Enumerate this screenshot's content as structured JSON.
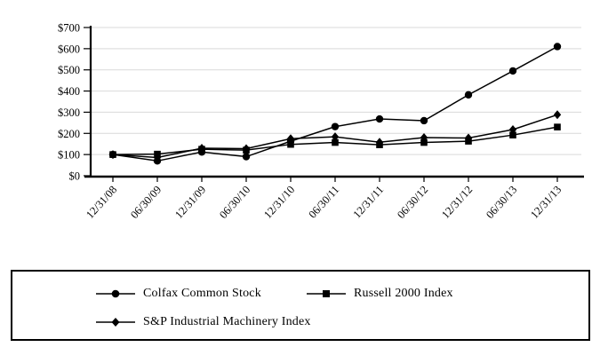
{
  "page": {
    "background": "#ffffff"
  },
  "chart_data": {
    "type": "line",
    "title": "",
    "xlabel": "",
    "ylabel": "",
    "categories": [
      "12/31/08",
      "06/30/09",
      "12/31/09",
      "06/30/10",
      "12/31/10",
      "06/30/11",
      "12/31/11",
      "06/30/12",
      "12/31/12",
      "06/30/13",
      "12/31/13"
    ],
    "series": [
      {
        "name": "Colfax Common Stock",
        "marker": "circle",
        "values": [
          100,
          70,
          112,
          90,
          163,
          232,
          268,
          260,
          382,
          495,
          610
        ]
      },
      {
        "name": "Russell 2000 Index",
        "marker": "square",
        "values": [
          100,
          102,
          125,
          121,
          148,
          157,
          146,
          157,
          163,
          192,
          230
        ]
      },
      {
        "name": "S&P Industrial Machinery Index",
        "marker": "diamond",
        "values": [
          100,
          86,
          130,
          128,
          175,
          184,
          158,
          180,
          178,
          218,
          288
        ]
      }
    ],
    "ylim": [
      0,
      700
    ],
    "y_tick_step": 100,
    "y_tick_labels": [
      "$0",
      "$100",
      "$200",
      "$300",
      "$400",
      "$500",
      "$600",
      "$700"
    ],
    "grid": "horizontal",
    "legend_position": "bottom-box",
    "colors": {
      "line": "#000000",
      "axis": "#000000",
      "grid": "#d9d9d9",
      "text": "#000000",
      "background": "#ffffff"
    }
  }
}
